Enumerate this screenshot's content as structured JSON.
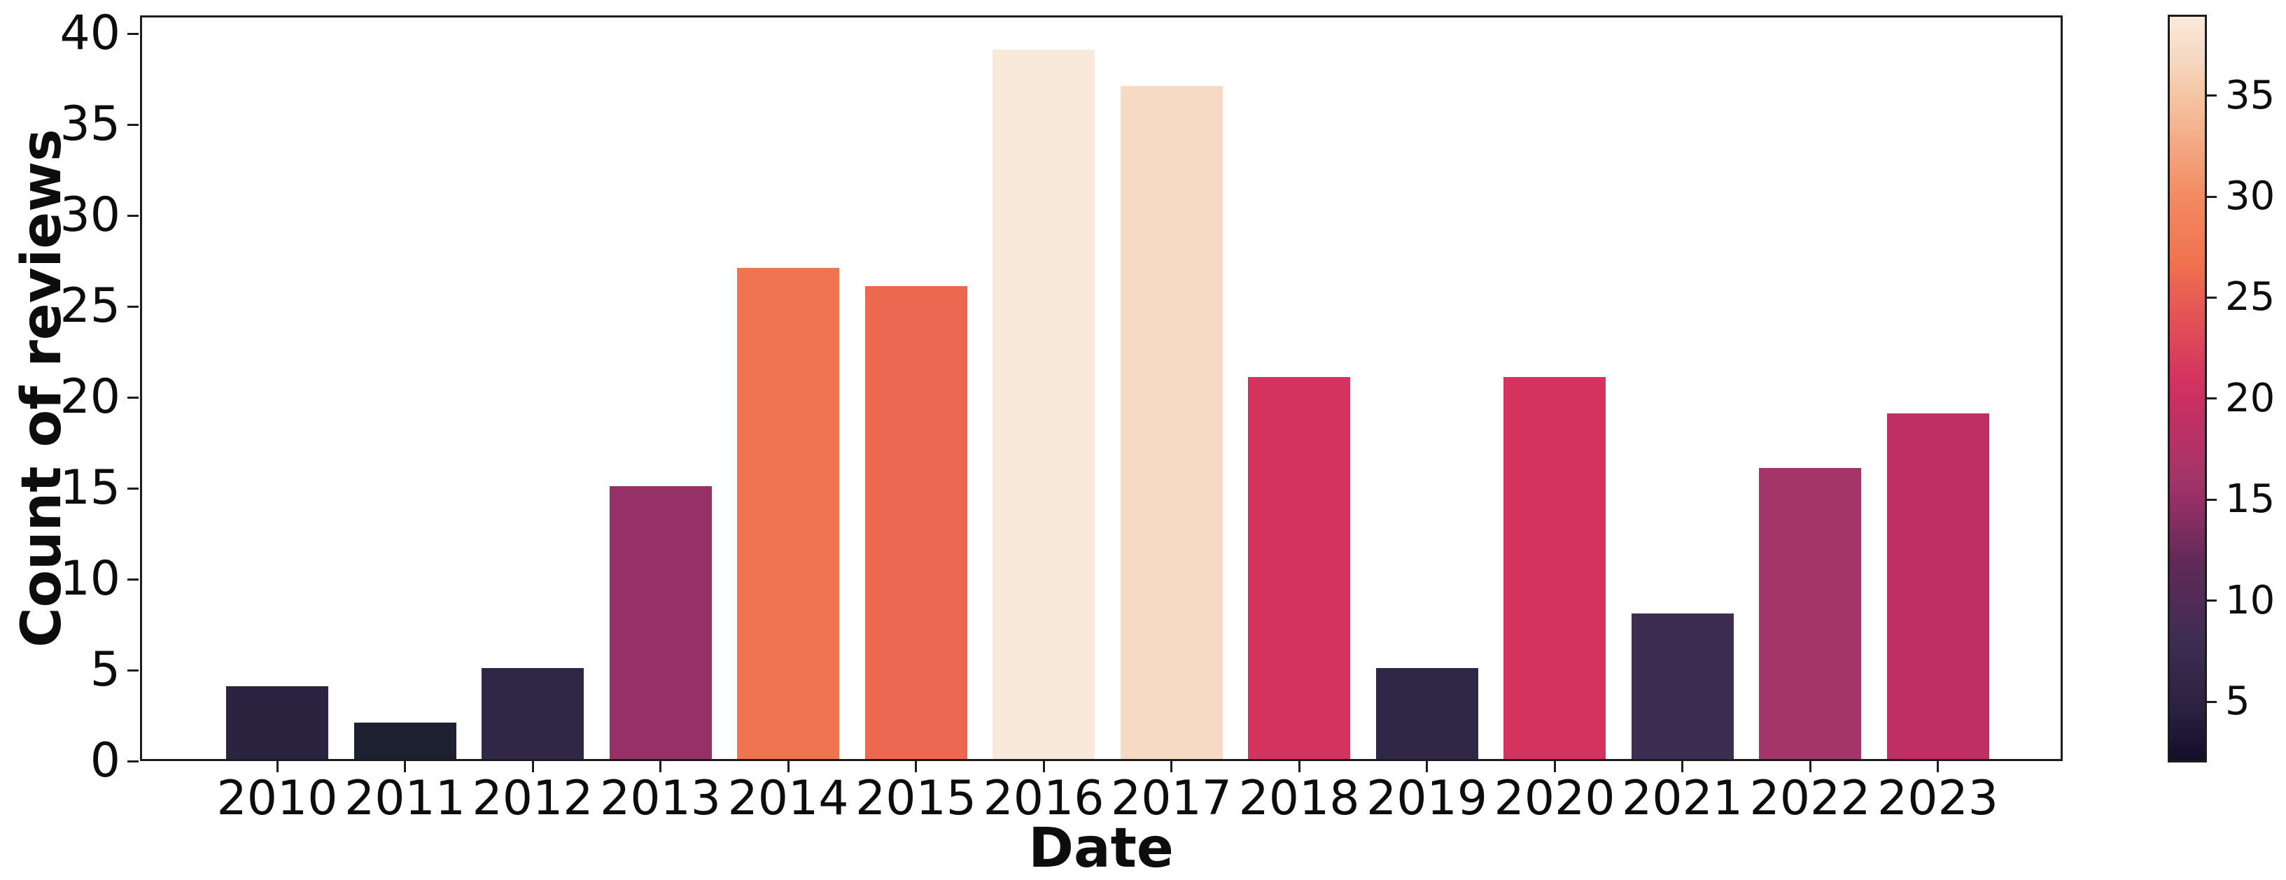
{
  "chart_data": {
    "type": "bar",
    "title": "",
    "xlabel": "Date",
    "ylabel": "Count of reviews",
    "categories": [
      "2010",
      "2011",
      "2012",
      "2013",
      "2014",
      "2015",
      "2016",
      "2017",
      "2018",
      "2019",
      "2020",
      "2021",
      "2022",
      "2023"
    ],
    "values": [
      4,
      2,
      5,
      15,
      27,
      26,
      39,
      37,
      21,
      5,
      21,
      8,
      16,
      19
    ],
    "bar_colors": [
      "#2B2440",
      "#1D2031",
      "#2F2745",
      "#973067",
      "#F0744F",
      "#ED6850",
      "#F9E9DB",
      "#F6DAC3",
      "#D43360",
      "#2F2745",
      "#D43360",
      "#3E2D53",
      "#A33568",
      "#C02F63"
    ],
    "ylim": [
      0,
      40
    ],
    "yticks": [
      0,
      5,
      10,
      15,
      20,
      25,
      30,
      35,
      40
    ],
    "grid": false,
    "legend": "none",
    "palette": "rocket",
    "background_color": "#ffffff",
    "spine_color": "#1c1c1c",
    "colorbar": {
      "position": "right",
      "min": 2,
      "max": 39,
      "ticks": [
        5,
        10,
        15,
        20,
        25,
        30,
        35
      ],
      "gradient": [
        {
          "value": 2,
          "color": "#140E2A"
        },
        {
          "value": 5,
          "color": "#2E2343"
        },
        {
          "value": 8,
          "color": "#3E2D53"
        },
        {
          "value": 12,
          "color": "#632A58"
        },
        {
          "value": 15,
          "color": "#973067"
        },
        {
          "value": 16,
          "color": "#A33568"
        },
        {
          "value": 19,
          "color": "#C02F63"
        },
        {
          "value": 21,
          "color": "#D43360"
        },
        {
          "value": 26,
          "color": "#ED6850"
        },
        {
          "value": 27,
          "color": "#F0744F"
        },
        {
          "value": 30,
          "color": "#F28A62"
        },
        {
          "value": 35,
          "color": "#F5C4A1"
        },
        {
          "value": 37,
          "color": "#F6DAC3"
        },
        {
          "value": 39,
          "color": "#F9E9DB"
        }
      ]
    }
  }
}
